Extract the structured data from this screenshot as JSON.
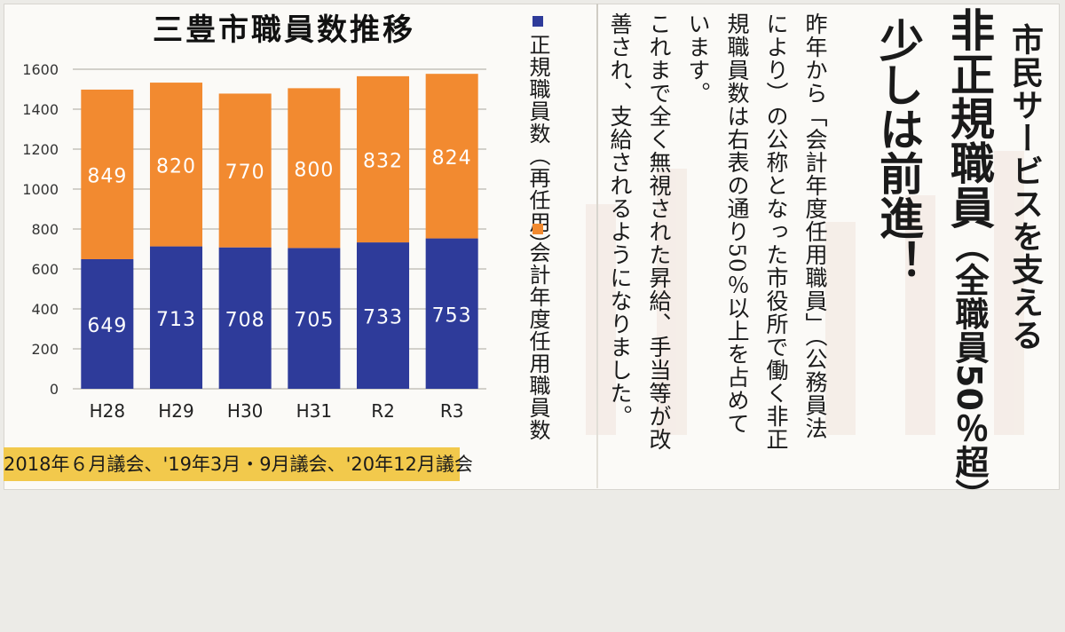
{
  "chart_title": "三豊市職員数推移",
  "chart_data": {
    "type": "bar",
    "stacked": true,
    "categories": [
      "H28",
      "H29",
      "H30",
      "H31",
      "R2",
      "R3"
    ],
    "series": [
      {
        "name": "正規職員数（再任用）",
        "values": [
          649,
          713,
          708,
          705,
          733,
          753
        ],
        "color": "#2e3b9a"
      },
      {
        "name": "会計年度任用職員数",
        "values": [
          849,
          820,
          770,
          800,
          832,
          824
        ],
        "color": "#f28a30"
      }
    ],
    "ylim": [
      0,
      1600
    ],
    "yticks": [
      0,
      200,
      400,
      600,
      800,
      1000,
      1200,
      1400,
      1600
    ],
    "grid": true
  },
  "legend": {
    "regular": "正規職員数（再任用）",
    "fiscal": "会計年度任用職員数"
  },
  "footer": "2018年６月議会、'19年3月・9月議会、'20年12月議会",
  "article": {
    "headline_1": "市民サービスを支える",
    "headline_2_main": "非正規職員",
    "headline_2_paren": "（全職員50％超）",
    "headline_3": "少しは前進！",
    "lines": [
      "昨年から「会計年度任用職員」（公務員法",
      "により）の公称となった市役所で働く非正",
      "規職員数は右表の通り50％以上を占めて",
      "います。",
      "これまで全く無視された昇給、手当等が改",
      "善され、支給されるようになりました。"
    ]
  }
}
